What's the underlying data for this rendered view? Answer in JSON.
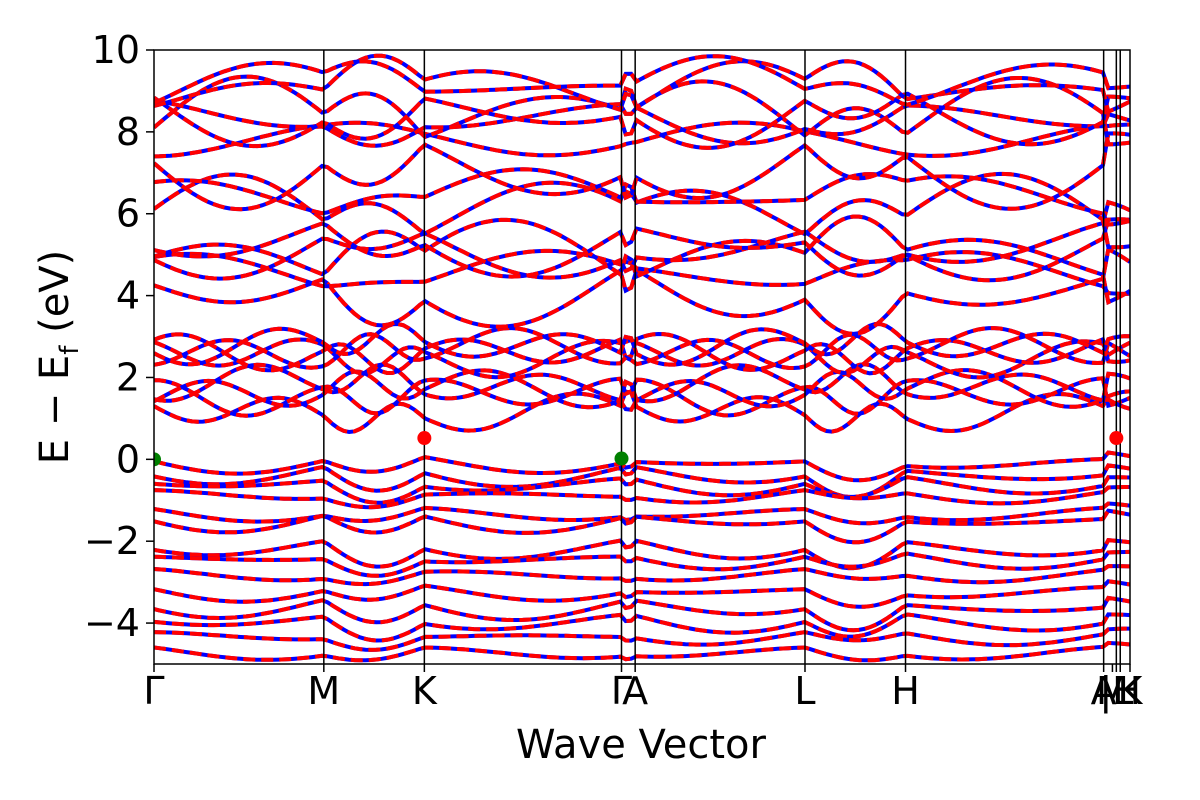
{
  "chart_data": {
    "type": "line",
    "xlabel": "Wave Vector",
    "ylabel_main": "E − E",
    "ylabel_sub": "f",
    "ylabel_unit": " (eV)",
    "ylim": [
      -5,
      10
    ],
    "yticks": [
      {
        "value": -4,
        "label": "−4"
      },
      {
        "value": -2,
        "label": "−2"
      },
      {
        "value": 0,
        "label": "0"
      },
      {
        "value": 2,
        "label": "2"
      },
      {
        "value": 4,
        "label": "4"
      },
      {
        "value": 6,
        "label": "6"
      },
      {
        "value": 8,
        "label": "8"
      },
      {
        "value": 10,
        "label": "10"
      }
    ],
    "xlim": [
      0,
      1
    ],
    "kpoints": [
      {
        "label": "Γ",
        "position": 0.0
      },
      {
        "label": "M",
        "position": 0.174
      },
      {
        "label": "K",
        "position": 0.277
      },
      {
        "label": "Γ",
        "position": 0.479
      },
      {
        "label": "A",
        "position": 0.493
      },
      {
        "label": "L",
        "position": 0.667
      },
      {
        "label": "H",
        "position": 0.77
      },
      {
        "label": "A",
        "position": 0.973
      },
      {
        "label": "|L",
        "position": 0.986
      },
      {
        "label": "M",
        "position": 0.982
      },
      {
        "label": "|H",
        "position": 0.99
      },
      {
        "label": "K",
        "position": 1.0
      }
    ],
    "gridlines_x": [
      0.174,
      0.277,
      0.479,
      0.493,
      0.667,
      0.77,
      0.973,
      0.986,
      0.99
    ],
    "grid_y": false,
    "series": [
      {
        "color": "#0000ff",
        "style": "solid"
      },
      {
        "color": "#ff0000",
        "style": "dashed"
      }
    ],
    "markers": [
      {
        "label": "VBM",
        "x": 0.0,
        "y": 0.0,
        "color": "#008000"
      },
      {
        "label": "VBM",
        "x": 0.479,
        "y": 0.02,
        "color": "#008000"
      },
      {
        "label": "CBM",
        "x": 0.277,
        "y": 0.52,
        "color": "#ff0000"
      },
      {
        "label": "CBM",
        "x": 0.986,
        "y": 0.52,
        "color": "#ff0000"
      }
    ],
    "band_families": [
      {
        "kind": "valence",
        "y_gamma": [
          -0.05,
          -0.3,
          -0.55,
          -0.85,
          -1.3,
          -1.45,
          -2.1,
          -2.4,
          -2.8,
          -3.2,
          -3.55,
          -3.9,
          -4.3,
          -4.7
        ]
      },
      {
        "kind": "flat_mid",
        "y_gamma": [
          1.15,
          1.55,
          1.7,
          1.85,
          2.5,
          2.6,
          2.7,
          2.8
        ]
      },
      {
        "kind": "conduction_upper",
        "y_gamma": [
          4.25,
          4.55,
          4.8,
          5.2,
          5.4,
          5.9,
          6.4,
          7.3,
          7.8,
          8.2,
          8.4,
          8.6,
          8.9,
          9.05
        ]
      }
    ]
  }
}
